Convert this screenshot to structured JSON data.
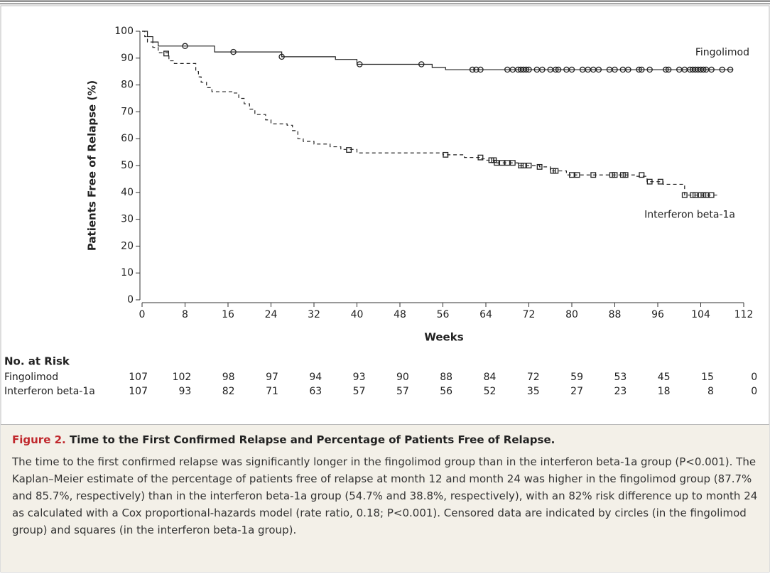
{
  "chart_data": {
    "type": "step",
    "y_label": "Patients Free of Relapse (%)",
    "x_label": "Weeks",
    "xlim": [
      0,
      112
    ],
    "xticks": [
      0,
      8,
      16,
      24,
      32,
      40,
      48,
      56,
      64,
      72,
      80,
      88,
      96,
      104,
      112
    ],
    "ylim": [
      0,
      100
    ],
    "yticks": [
      0,
      10,
      20,
      30,
      40,
      50,
      60,
      70,
      80,
      90,
      100
    ],
    "series": [
      {
        "name": "Fingolimod",
        "color": "#222222",
        "line_style": "solid",
        "marker": "circle",
        "x": [
          0,
          1,
          2,
          3,
          13.5,
          26,
          36,
          40,
          54,
          56.5,
          110
        ],
        "values": [
          100,
          98,
          96,
          94.5,
          92.3,
          90.5,
          89.5,
          87.7,
          86.5,
          85.7,
          85.7
        ],
        "censored_x": [
          8,
          17,
          26,
          40.5,
          52,
          61.5,
          62.2,
          63,
          68,
          69,
          70,
          70.5,
          71,
          71.5,
          72,
          73.5,
          74.5,
          76,
          77,
          77.5,
          79,
          80,
          82,
          83,
          84,
          85,
          87,
          88,
          89.5,
          90.5,
          92.5,
          93,
          94.5,
          97.5,
          98,
          100,
          101,
          102,
          102.5,
          103,
          103.5,
          104,
          104.5,
          105,
          106,
          108,
          109.5
        ],
        "censored_values": [
          94.5,
          92.3,
          90.5,
          87.7,
          87.7,
          85.7,
          85.7,
          85.7,
          85.7,
          85.7,
          85.7,
          85.7,
          85.7,
          85.7,
          85.7,
          85.7,
          85.7,
          85.7,
          85.7,
          85.7,
          85.7,
          85.7,
          85.7,
          85.7,
          85.7,
          85.7,
          85.7,
          85.7,
          85.7,
          85.7,
          85.7,
          85.7,
          85.7,
          85.7,
          85.7,
          85.7,
          85.7,
          85.7,
          85.7,
          85.7,
          85.7,
          85.7,
          85.7,
          85.7,
          85.7,
          85.7,
          85.7
        ]
      },
      {
        "name": "Interferon beta-1a",
        "color": "#222222",
        "line_style": "dashed",
        "marker": "square",
        "x": [
          0,
          0.5,
          1,
          2,
          3,
          5,
          6,
          10,
          10.5,
          11,
          12,
          13,
          17,
          18,
          19,
          20,
          21,
          23,
          24,
          27,
          28,
          29,
          30,
          32,
          35,
          37,
          40,
          56,
          60,
          63,
          64,
          66,
          70,
          74,
          76,
          79,
          92,
          94,
          97,
          101,
          107
        ],
        "values": [
          100,
          98,
          96,
          94,
          92,
          89,
          88,
          85,
          83,
          81,
          79,
          77.5,
          77,
          75,
          73,
          71,
          69,
          67,
          65.5,
          65,
          63,
          60,
          59,
          58,
          57,
          56,
          54.7,
          54,
          53,
          52.5,
          52,
          51,
          50,
          49.5,
          48,
          46.5,
          46,
          44,
          43,
          39,
          38.8
        ],
        "censored_x": [
          4.5,
          38.5,
          56.5,
          63,
          65,
          65.5,
          66,
          67,
          68,
          69,
          70.5,
          71,
          72,
          74,
          76.5,
          77,
          80,
          81,
          84,
          87.5,
          88,
          89.5,
          90,
          93,
          94.5,
          96.5,
          101,
          102.5,
          103,
          104,
          104.5,
          105,
          106
        ],
        "censored_values": [
          91.7,
          55.8,
          54,
          53,
          52,
          52,
          51,
          51,
          51,
          51,
          50,
          50,
          50,
          49.5,
          48,
          48,
          46.5,
          46.5,
          46.5,
          46.5,
          46.5,
          46.5,
          46.5,
          46.5,
          44,
          44,
          39,
          39,
          39,
          39,
          39,
          39,
          39
        ]
      }
    ],
    "risk_table": {
      "title": "No. at Risk",
      "rows": [
        {
          "label": "Fingolimod",
          "values": [
            107,
            102,
            98,
            97,
            94,
            93,
            90,
            88,
            84,
            72,
            59,
            53,
            45,
            15,
            0
          ]
        },
        {
          "label": "Interferon beta-1a",
          "values": [
            107,
            93,
            82,
            71,
            63,
            57,
            57,
            56,
            52,
            35,
            27,
            23,
            18,
            8,
            0
          ]
        }
      ]
    }
  },
  "caption": {
    "label": "Figure 2.",
    "title": "Time to the First Confirmed Relapse and Percentage of Patients Free of Relapse.",
    "body": "The time to the first confirmed relapse was significantly longer in the fingolimod group than in the interferon beta-1a group (P<0.001). The Kaplan–Meier estimate of the percentage of patients free of relapse at month 12 and month 24 was higher in the fingolimod group (87.7% and 85.7%, respectively) than in the interferon beta-1a group (54.7% and 38.8%, respectively), with an 82% risk difference up to month 24 as calculated with a Cox proportional-hazards model (rate ratio, 0.18; P<0.001). Censored data are indicated by circles (in the fingolimod group) and squares (in the interferon beta-1a group)."
  }
}
